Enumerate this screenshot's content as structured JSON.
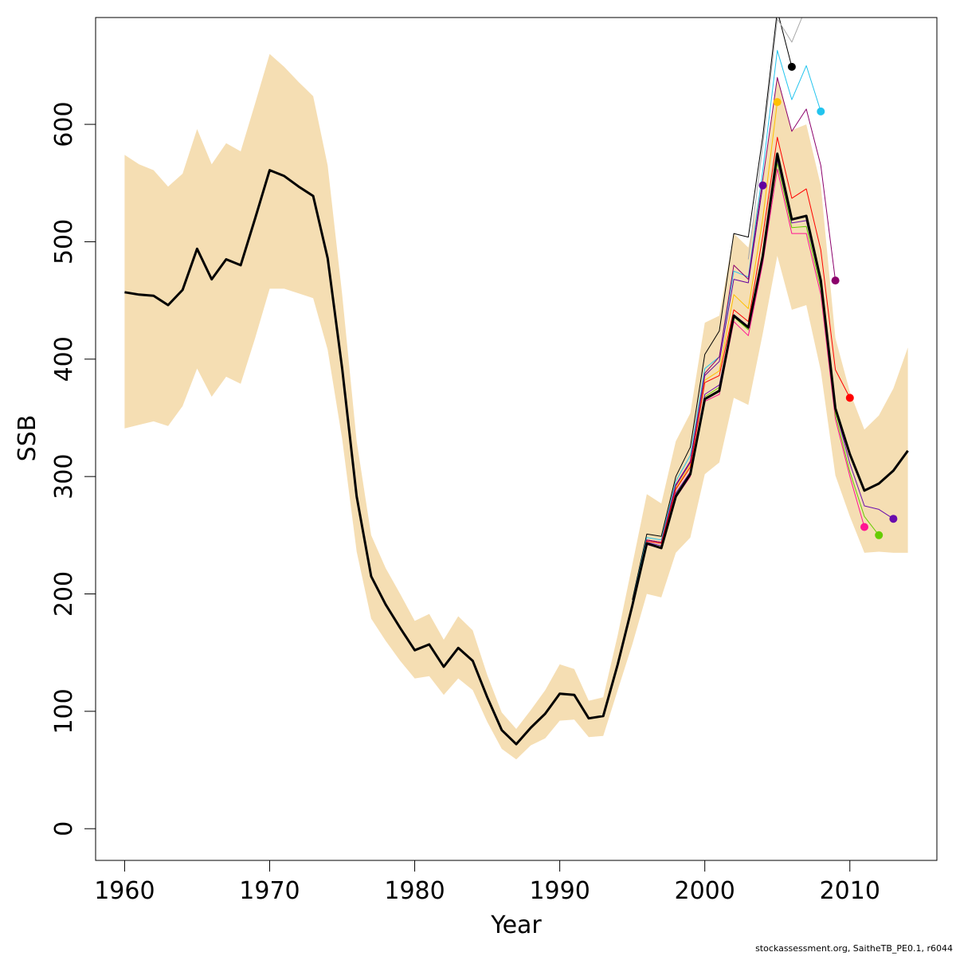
{
  "chart_data": {
    "type": "line",
    "xlabel": "Year",
    "ylabel": "SSB",
    "xlim": [
      1958,
      2016
    ],
    "ylim": [
      -27,
      691
    ],
    "x_ticks": [
      1960,
      1970,
      1980,
      1990,
      2000,
      2010
    ],
    "y_ticks": [
      0,
      100,
      200,
      300,
      400,
      500,
      600
    ],
    "grid": false,
    "legend": "none",
    "band_color": "#f5deb3",
    "confidence_band": {
      "x": [
        1960,
        1961,
        1962,
        1963,
        1964,
        1965,
        1966,
        1967,
        1968,
        1969,
        1970,
        1971,
        1972,
        1973,
        1974,
        1975,
        1976,
        1977,
        1978,
        1979,
        1980,
        1981,
        1982,
        1983,
        1984,
        1985,
        1986,
        1987,
        1988,
        1989,
        1990,
        1991,
        1992,
        1993,
        1994,
        1995,
        1996,
        1997,
        1998,
        1999,
        2000,
        2001,
        2002,
        2003,
        2004,
        2005,
        2006,
        2007,
        2008,
        2009,
        2010,
        2011,
        2012,
        2013,
        2014
      ],
      "upper": [
        574,
        566,
        561,
        547,
        558,
        596,
        566,
        584,
        577,
        618,
        660,
        649,
        636,
        624,
        565,
        455,
        330,
        250,
        222,
        200,
        177,
        183,
        161,
        181,
        169,
        131,
        99,
        85,
        101,
        118,
        140,
        136,
        109,
        112,
        165,
        225,
        285,
        277,
        330,
        354,
        431,
        437,
        507,
        495,
        555,
        641,
        595,
        600,
        548,
        418,
        372,
        340,
        352,
        375,
        410
      ],
      "lower": [
        341,
        344,
        347,
        343,
        360,
        392,
        368,
        385,
        379,
        418,
        460,
        460,
        456,
        452,
        408,
        332,
        236,
        179,
        160,
        143,
        128,
        130,
        114,
        128,
        118,
        91,
        68,
        59,
        71,
        77,
        92,
        93,
        78,
        79,
        118,
        157,
        200,
        197,
        235,
        248,
        302,
        312,
        367,
        361,
        422,
        488,
        442,
        446,
        390,
        301,
        266,
        235,
        236,
        235,
        235
      ]
    },
    "series": [
      {
        "color": "#000000",
        "width": 3,
        "x": [
          1960,
          1961,
          1962,
          1963,
          1964,
          1965,
          1966,
          1967,
          1968,
          1969,
          1970,
          1971,
          1972,
          1973,
          1974,
          1975,
          1976,
          1977,
          1978,
          1979,
          1980,
          1981,
          1982,
          1983,
          1984,
          1985,
          1986,
          1987,
          1988,
          1989,
          1990,
          1991,
          1992,
          1993,
          1994,
          1995,
          1996,
          1997,
          1998,
          1999,
          2000,
          2001,
          2002,
          2003,
          2004,
          2005,
          2006,
          2007,
          2008,
          2009,
          2010,
          2011,
          2012,
          2013,
          2014
        ],
        "values": [
          457,
          455,
          454,
          446,
          459,
          494,
          468,
          485,
          480,
          520,
          561,
          556,
          547,
          539,
          486,
          392,
          283,
          215,
          191,
          171,
          152,
          157,
          138,
          154,
          143,
          112,
          84,
          72,
          86,
          98,
          115,
          114,
          94,
          96,
          140,
          190,
          243,
          239,
          283,
          302,
          366,
          373,
          437,
          427,
          488,
          575,
          519,
          522,
          467,
          358,
          319,
          288,
          294,
          305,
          322
        ]
      },
      {
        "color": "#000000",
        "width": 1,
        "x": [
          1995,
          1996,
          1997,
          1998,
          1999,
          2000,
          2001,
          2002,
          2003,
          2004,
          2005,
          2006
        ],
        "values": [
          195,
          251,
          249,
          300,
          325,
          404,
          424,
          507,
          504,
          590,
          697,
          649
        ],
        "end_point": true
      },
      {
        "color": "#a8a8a8",
        "width": 1,
        "x": [
          2003,
          2004,
          2005,
          2006,
          2007
        ],
        "values": [
          485,
          582,
          690,
          670,
          700
        ]
      },
      {
        "color": "#22c4ee",
        "width": 1,
        "x": [
          1995,
          1996,
          1997,
          1998,
          1999,
          2000,
          2001,
          2002,
          2003,
          2004,
          2005,
          2006,
          2007,
          2008
        ],
        "values": [
          193,
          248,
          246,
          296,
          318,
          392,
          402,
          475,
          470,
          561,
          663,
          621,
          650,
          611
        ],
        "end_point": true
      },
      {
        "color": "#ffc000",
        "width": 1,
        "x": [
          1995,
          1996,
          1997,
          1998,
          1999,
          2000,
          2001,
          2002,
          2003,
          2004,
          2005
        ],
        "values": [
          191,
          246,
          244,
          290,
          310,
          382,
          390,
          455,
          443,
          520,
          619
        ],
        "end_point": true
      },
      {
        "color": "#62009e",
        "width": 1,
        "x": [
          1995,
          1996,
          1997,
          1998,
          1999,
          2000,
          2001,
          2002,
          2003,
          2004
        ],
        "values": [
          191,
          246,
          244,
          292,
          312,
          386,
          398,
          468,
          465,
          548
        ],
        "end_point": true
      },
      {
        "color": "#8b006b",
        "width": 1,
        "x": [
          1995,
          1996,
          1997,
          1998,
          1999,
          2000,
          2001,
          2002,
          2003,
          2004,
          2005,
          2006,
          2007,
          2008,
          2009
        ],
        "values": [
          191,
          246,
          244,
          293,
          313,
          388,
          402,
          480,
          468,
          553,
          640,
          594,
          613,
          565,
          467
        ],
        "end_point": true
      },
      {
        "color": "#ff0000",
        "width": 1,
        "x": [
          1995,
          1996,
          1997,
          1998,
          1999,
          2000,
          2001,
          2002,
          2003,
          2004,
          2005,
          2006,
          2007,
          2008,
          2009,
          2010
        ],
        "values": [
          190,
          245,
          243,
          289,
          308,
          380,
          386,
          442,
          432,
          505,
          589,
          537,
          545,
          493,
          391,
          367
        ],
        "end_point": true
      },
      {
        "color": "#ff1493",
        "width": 1,
        "x": [
          1995,
          1996,
          1997,
          1998,
          1999,
          2000,
          2001,
          2002,
          2003,
          2004,
          2005,
          2006,
          2007,
          2008,
          2009,
          2010,
          2011
        ],
        "values": [
          188,
          242,
          239,
          282,
          300,
          364,
          370,
          432,
          420,
          482,
          562,
          507,
          507,
          455,
          349,
          300,
          257
        ],
        "end_point": true
      },
      {
        "color": "#66cc00",
        "width": 1,
        "x": [
          1995,
          1996,
          1997,
          1998,
          1999,
          2000,
          2001,
          2002,
          2003,
          2004,
          2005,
          2006,
          2007,
          2008,
          2009,
          2010,
          2011,
          2012
        ],
        "values": [
          189,
          243,
          240,
          285,
          303,
          368,
          376,
          436,
          425,
          488,
          567,
          512,
          513,
          460,
          353,
          304,
          266,
          250
        ],
        "end_point": true
      },
      {
        "color": "#6a0dad",
        "width": 1,
        "x": [
          1995,
          1996,
          1997,
          1998,
          1999,
          2000,
          2001,
          2002,
          2003,
          2004,
          2005,
          2006,
          2007,
          2008,
          2009,
          2010,
          2011,
          2012,
          2013
        ],
        "values": [
          189,
          244,
          241,
          286,
          304,
          370,
          378,
          438,
          428,
          490,
          570,
          516,
          518,
          464,
          357,
          311,
          275,
          272,
          264
        ],
        "end_point": true
      }
    ]
  },
  "footer": "stockassessment.org, SaitheTB_PE0.1, r6044"
}
